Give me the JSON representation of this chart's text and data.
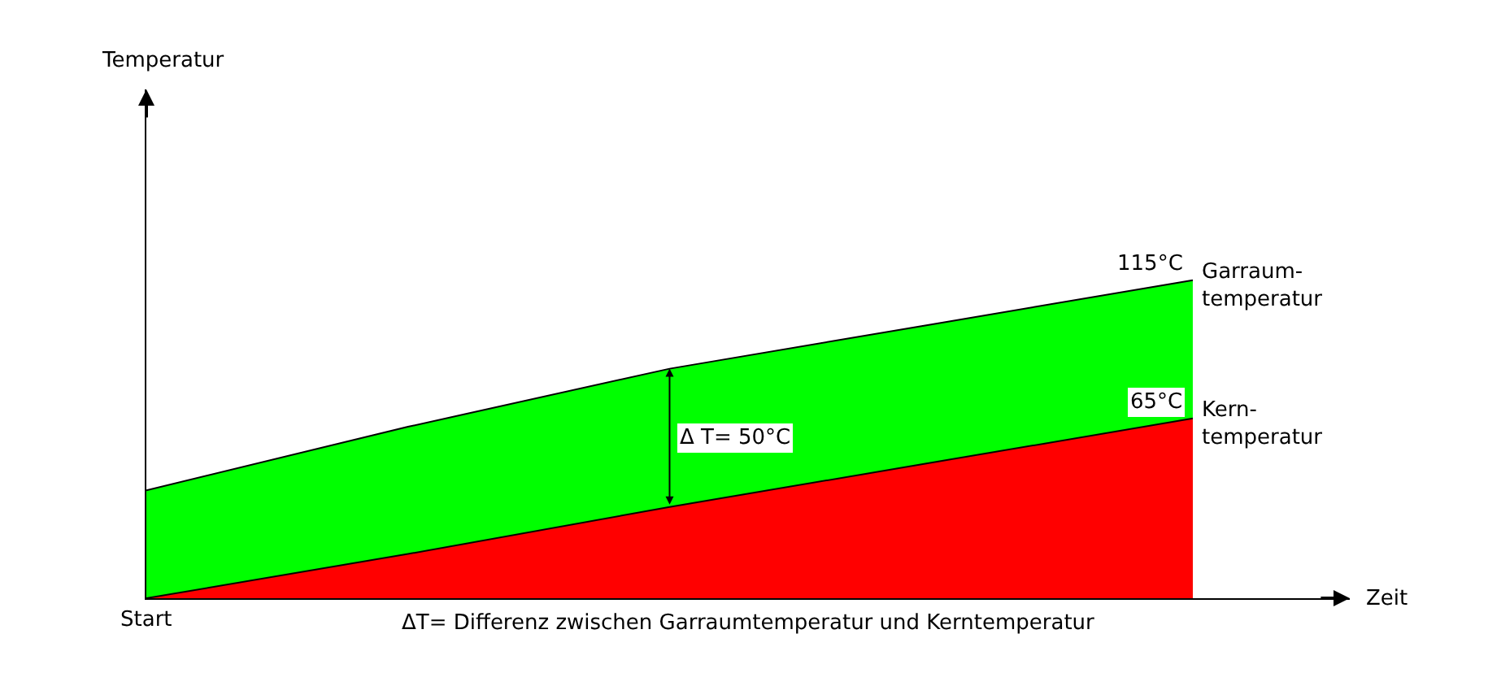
{
  "chart_data": {
    "type": "area",
    "xlabel": "Zeit",
    "categories": [
      null,
      null,
      null,
      null,
      null
    ],
    "series": [
      {
        "name": "Garraum-\ntemperatur",
        "color": "#00ff00",
        "values": [
          39,
          62,
          83,
          99,
          115
        ],
        "value_labels": [
          null,
          null,
          null,
          null,
          "115°C"
        ]
      },
      {
        "name": "Kern-\ntemperatur",
        "color": "#ff0000",
        "values": [
          0,
          16,
          33,
          49,
          65
        ],
        "value_labels": [
          null,
          null,
          null,
          null,
          "65°C"
        ]
      }
    ],
    "annotations": [
      "Δ T= 50°C",
      "ΔT= Differenz zwischen Garraumtemperatur und Kerntemperatur",
      "Start",
      "Temperatur"
    ],
    "legend": false,
    "tick_labels": false
  }
}
